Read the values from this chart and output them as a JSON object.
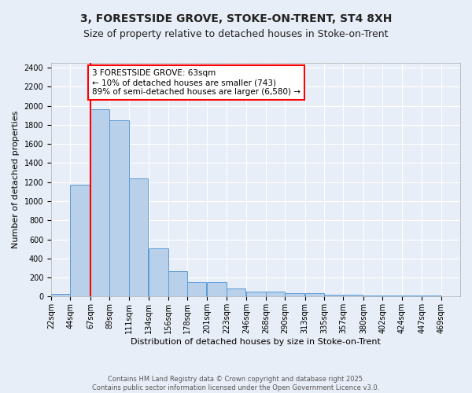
{
  "title_line1": "3, FORESTSIDE GROVE, STOKE-ON-TRENT, ST4 8XH",
  "title_line2": "Size of property relative to detached houses in Stoke-on-Trent",
  "xlabel": "Distribution of detached houses by size in Stoke-on-Trent",
  "ylabel": "Number of detached properties",
  "bar_left_edges": [
    22,
    44,
    67,
    89,
    111,
    134,
    156,
    178,
    201,
    223,
    246,
    268,
    290,
    313,
    335,
    357,
    380,
    402,
    424,
    447
  ],
  "bar_heights": [
    30,
    1170,
    1960,
    1850,
    1240,
    510,
    270,
    155,
    155,
    90,
    50,
    50,
    40,
    40,
    20,
    20,
    15,
    15,
    10,
    10
  ],
  "bin_width": 22,
  "tick_labels": [
    "22sqm",
    "44sqm",
    "67sqm",
    "89sqm",
    "111sqm",
    "134sqm",
    "156sqm",
    "178sqm",
    "201sqm",
    "223sqm",
    "246sqm",
    "268sqm",
    "290sqm",
    "313sqm",
    "335sqm",
    "357sqm",
    "380sqm",
    "402sqm",
    "424sqm",
    "447sqm",
    "469sqm"
  ],
  "bar_color": "#b8d0ea",
  "bar_edge_color": "#5b9bd5",
  "vline_x": 67,
  "vline_color": "red",
  "annotation_text": "3 FORESTSIDE GROVE: 63sqm\n← 10% of detached houses are smaller (743)\n89% of semi-detached houses are larger (6,580) →",
  "annotation_box_color": "white",
  "annotation_box_edge": "red",
  "ylim": [
    0,
    2450
  ],
  "yticks": [
    0,
    200,
    400,
    600,
    800,
    1000,
    1200,
    1400,
    1600,
    1800,
    2000,
    2200,
    2400
  ],
  "bg_color": "#e8eef7",
  "plot_bg_color": "#e8eef7",
  "grid_color": "#ffffff",
  "footer_text": "Contains HM Land Registry data © Crown copyright and database right 2025.\nContains public sector information licensed under the Open Government Licence v3.0.",
  "title_fontsize": 10,
  "subtitle_fontsize": 9,
  "axis_label_fontsize": 8,
  "tick_fontsize": 7,
  "annotation_fontsize": 7.5,
  "footer_fontsize": 6
}
